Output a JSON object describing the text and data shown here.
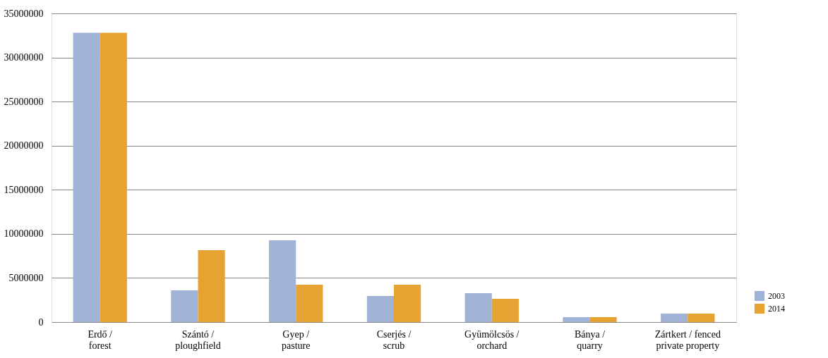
{
  "chart_data": {
    "type": "bar",
    "categories": [
      "Erdő /\nforest",
      "Szántó /\nploughfield",
      "Gyep /\npasture",
      "Cserjés /\nscrub",
      "Gyümölcsös /\norchard",
      "Bánya /\nquarry",
      "Zártkert / fenced\nprivate property"
    ],
    "series": [
      {
        "name": "2003",
        "color": "#a0b3d6",
        "values": [
          32800000,
          3600000,
          9270000,
          2960000,
          3280000,
          560000,
          960000
        ]
      },
      {
        "name": "2014",
        "color": "#e6a332",
        "values": [
          32800000,
          8150000,
          4240000,
          4240000,
          2640000,
          560000,
          960000
        ]
      }
    ],
    "ylim": [
      0,
      35000000
    ],
    "yticks": [
      0,
      5000000,
      10000000,
      15000000,
      20000000,
      25000000,
      30000000,
      35000000
    ],
    "grid": "y",
    "legend": "bottom right"
  }
}
